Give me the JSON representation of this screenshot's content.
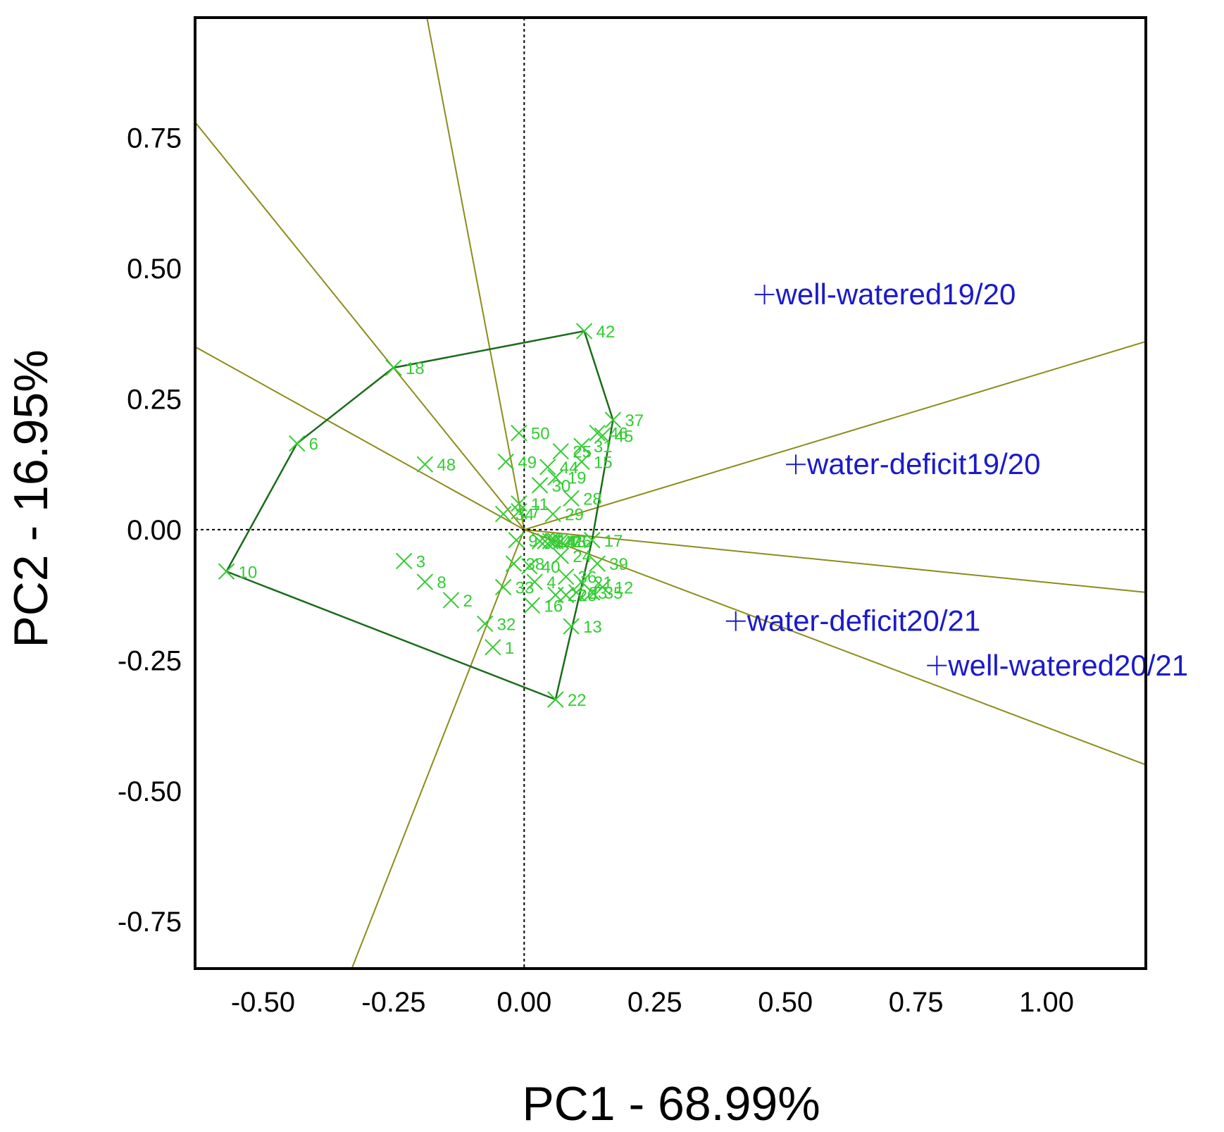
{
  "chart_data": {
    "type": "scatter",
    "title": "",
    "xlabel": "PC1 - 68.99%",
    "ylabel": "PC2 - 16.95%",
    "xlim": [
      -0.63,
      1.19
    ],
    "ylim": [
      -0.84,
      0.98
    ],
    "xticks": [
      "-0.50",
      "-0.25",
      "0.00",
      "0.25",
      "0.50",
      "0.75",
      "1.00"
    ],
    "xtick_values": [
      -0.5,
      -0.25,
      0,
      0.25,
      0.5,
      0.75,
      1.0
    ],
    "yticks": [
      "0.75",
      "0.50",
      "0.25",
      "0.00",
      "-0.25",
      "-0.50",
      "-0.75"
    ],
    "ytick_values": [
      0.75,
      0.5,
      0.25,
      0,
      -0.25,
      -0.5,
      -0.75
    ],
    "colors": {
      "genotype": "#33cc33",
      "environment": "#1a1acc",
      "polygon": "#1a6b1a",
      "ray": "#8c8c1a",
      "axis": "#000000"
    },
    "genotypes": [
      {
        "label": "1",
        "x": -0.06,
        "y": -0.225
      },
      {
        "label": "2",
        "x": -0.14,
        "y": -0.135
      },
      {
        "label": "3",
        "x": -0.23,
        "y": -0.06
      },
      {
        "label": "4",
        "x": 0.02,
        "y": -0.1
      },
      {
        "label": "5",
        "x": 0.03,
        "y": -0.022
      },
      {
        "label": "6",
        "x": -0.435,
        "y": 0.165
      },
      {
        "label": "7",
        "x": -0.01,
        "y": 0.035
      },
      {
        "label": "8",
        "x": -0.19,
        "y": -0.1
      },
      {
        "label": "9",
        "x": -0.015,
        "y": -0.02
      },
      {
        "label": "10",
        "x": -0.57,
        "y": -0.08
      },
      {
        "label": "11",
        "x": -0.01,
        "y": 0.05
      },
      {
        "label": "12",
        "x": 0.15,
        "y": -0.11
      },
      {
        "label": "13",
        "x": 0.09,
        "y": -0.185
      },
      {
        "label": "14",
        "x": 0.04,
        "y": -0.022
      },
      {
        "label": "15",
        "x": 0.11,
        "y": 0.13
      },
      {
        "label": "16",
        "x": 0.015,
        "y": -0.145
      },
      {
        "label": "17",
        "x": 0.13,
        "y": -0.02
      },
      {
        "label": "18",
        "x": -0.25,
        "y": 0.31
      },
      {
        "label": "19",
        "x": 0.06,
        "y": 0.1
      },
      {
        "label": "20",
        "x": 0.08,
        "y": -0.125
      },
      {
        "label": "21",
        "x": 0.11,
        "y": -0.1
      },
      {
        "label": "22",
        "x": 0.06,
        "y": -0.325
      },
      {
        "label": "23",
        "x": 0.1,
        "y": -0.12
      },
      {
        "label": "24",
        "x": 0.07,
        "y": -0.05
      },
      {
        "label": "25",
        "x": 0.07,
        "y": 0.15
      },
      {
        "label": "26",
        "x": 0.07,
        "y": -0.022
      },
      {
        "label": "27",
        "x": 0.06,
        "y": -0.125
      },
      {
        "label": "28",
        "x": 0.09,
        "y": 0.06
      },
      {
        "label": "29",
        "x": 0.055,
        "y": 0.03
      },
      {
        "label": "30",
        "x": 0.03,
        "y": 0.085
      },
      {
        "label": "31",
        "x": 0.11,
        "y": 0.16
      },
      {
        "label": "32",
        "x": -0.075,
        "y": -0.18
      },
      {
        "label": "33",
        "x": -0.04,
        "y": -0.11
      },
      {
        "label": "34",
        "x": -0.04,
        "y": 0.03
      },
      {
        "label": "35",
        "x": 0.13,
        "y": -0.12
      },
      {
        "label": "36",
        "x": 0.08,
        "y": -0.09
      },
      {
        "label": "37",
        "x": 0.17,
        "y": 0.21
      },
      {
        "label": "38",
        "x": -0.02,
        "y": -0.065
      },
      {
        "label": "39",
        "x": 0.14,
        "y": -0.065
      },
      {
        "label": "40",
        "x": 0.01,
        "y": -0.07
      },
      {
        "label": "41",
        "x": 0.055,
        "y": -0.022
      },
      {
        "label": "42",
        "x": 0.115,
        "y": 0.38
      },
      {
        "label": "43",
        "x": 0.06,
        "y": -0.022
      },
      {
        "label": "44",
        "x": 0.045,
        "y": 0.12
      },
      {
        "label": "45",
        "x": 0.15,
        "y": 0.18
      },
      {
        "label": "46",
        "x": 0.14,
        "y": 0.185
      },
      {
        "label": "47",
        "x": 0.05,
        "y": -0.022
      },
      {
        "label": "48",
        "x": -0.19,
        "y": 0.125
      },
      {
        "label": "49",
        "x": -0.035,
        "y": 0.13
      },
      {
        "label": "50",
        "x": -0.01,
        "y": 0.185
      }
    ],
    "environments": [
      {
        "label": "well-watered19/20",
        "x": 0.46,
        "y": 0.45
      },
      {
        "label": "water-deficit19/20",
        "x": 0.52,
        "y": 0.125
      },
      {
        "label": "water-deficit20/21",
        "x": 0.405,
        "y": -0.175
      },
      {
        "label": "well-watered20/21",
        "x": 0.79,
        "y": -0.26
      }
    ],
    "polygon_vertices": [
      "42",
      "37",
      "17",
      "22",
      "10",
      "6",
      "18"
    ],
    "rays": [
      {
        "through": [
          -0.19,
          1.0
        ]
      },
      {
        "through": [
          -0.63,
          0.78
        ]
      },
      {
        "through": [
          -0.63,
          0.35
        ]
      },
      {
        "through": [
          1.19,
          0.36
        ]
      },
      {
        "through": [
          1.19,
          -0.12
        ]
      },
      {
        "through": [
          1.19,
          -0.45
        ]
      },
      {
        "through": [
          -0.33,
          -0.84
        ]
      }
    ]
  }
}
